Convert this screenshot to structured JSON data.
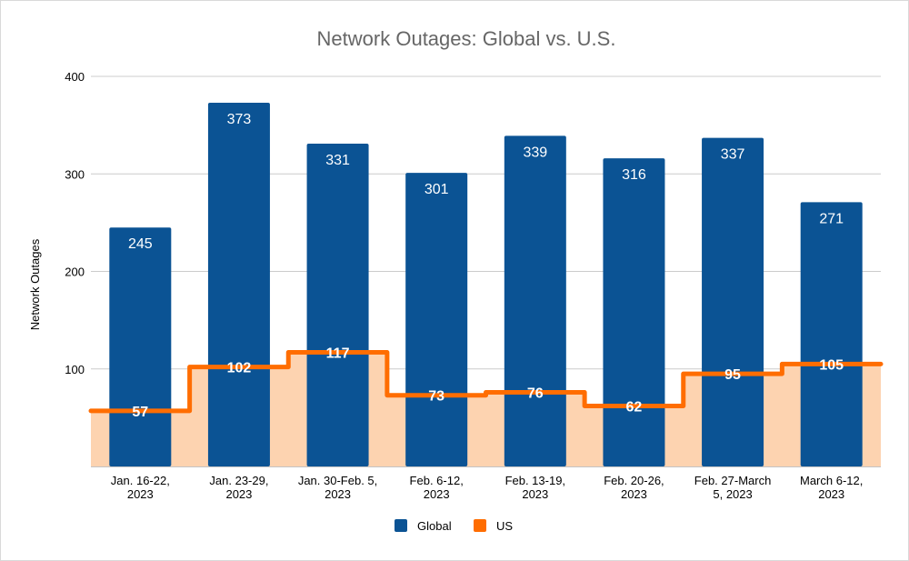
{
  "chart_data": {
    "type": "bar",
    "title": "Network Outages: Global vs. U.S.",
    "xlabel": "",
    "ylabel": "Network Outages",
    "ylim": [
      0,
      400
    ],
    "yticks": [
      100,
      200,
      300,
      400
    ],
    "grid": true,
    "legend_position": "bottom",
    "categories": [
      [
        "Jan. 16-22,",
        "2023"
      ],
      [
        "Jan. 23-29,",
        "2023"
      ],
      [
        "Jan. 30-Feb. 5,",
        "2023"
      ],
      [
        "Feb. 6-12,",
        "2023"
      ],
      [
        "Feb. 13-19,",
        "2023"
      ],
      [
        "Feb. 20-26,",
        "2023"
      ],
      [
        "Feb. 27-March",
        "5, 2023"
      ],
      [
        "March 6-12,",
        "2023"
      ]
    ],
    "series": [
      {
        "name": "Global",
        "type": "bar",
        "color": "#0b5394",
        "values": [
          245,
          373,
          331,
          301,
          339,
          316,
          337,
          271
        ]
      },
      {
        "name": "US",
        "type": "stepped-area",
        "color": "#ff6d01",
        "fill": "#fdd3b0",
        "values": [
          57,
          102,
          117,
          73,
          76,
          62,
          95,
          105
        ]
      }
    ]
  }
}
